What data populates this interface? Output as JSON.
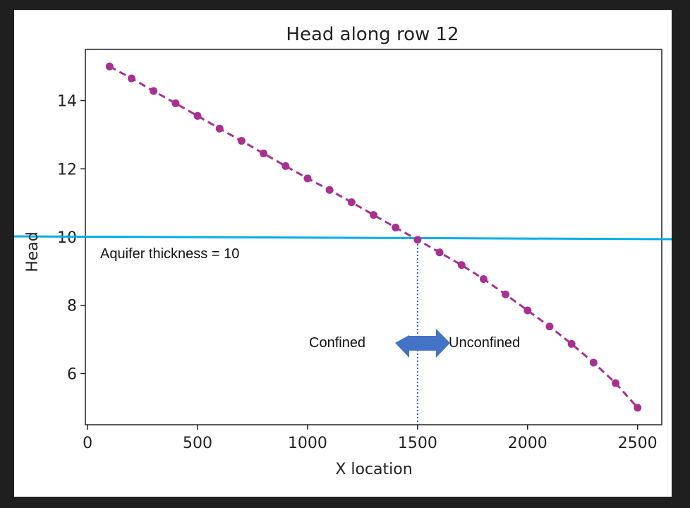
{
  "chart_data": {
    "type": "line",
    "title": "Head along row 12",
    "xlabel": "X location",
    "ylabel": "Head",
    "xlim": [
      -10,
      2610
    ],
    "ylim": [
      4.5,
      15.5
    ],
    "xticks": [
      0,
      500,
      1000,
      1500,
      2000,
      2500
    ],
    "yticks": [
      6,
      8,
      10,
      12,
      14
    ],
    "grid": false,
    "series": [
      {
        "color": "#a8308f",
        "style": "dashed-with-markers",
        "x": [
          100,
          200,
          300,
          400,
          500,
          600,
          700,
          800,
          900,
          1000,
          1100,
          1200,
          1300,
          1400,
          1500,
          1600,
          1700,
          1800,
          1900,
          2000,
          2100,
          2200,
          2300,
          2400,
          2500
        ],
        "y": [
          15.0,
          14.65,
          14.28,
          13.92,
          13.55,
          13.18,
          12.82,
          12.45,
          12.08,
          11.72,
          11.38,
          11.02,
          10.65,
          10.28,
          9.92,
          9.55,
          9.18,
          8.77,
          8.32,
          7.85,
          7.38,
          6.87,
          6.32,
          5.72,
          5.0
        ]
      }
    ],
    "reference_line": {
      "y": 10,
      "color": "#00aee8"
    },
    "divider": {
      "x": 1500,
      "color": "#2f5fbf",
      "style": "dotted"
    },
    "annotations": {
      "thickness": "Aquifer thickness = 10",
      "left_label": "Confined",
      "right_label": "Unconfined",
      "arrow_color": "#4472c4"
    }
  }
}
